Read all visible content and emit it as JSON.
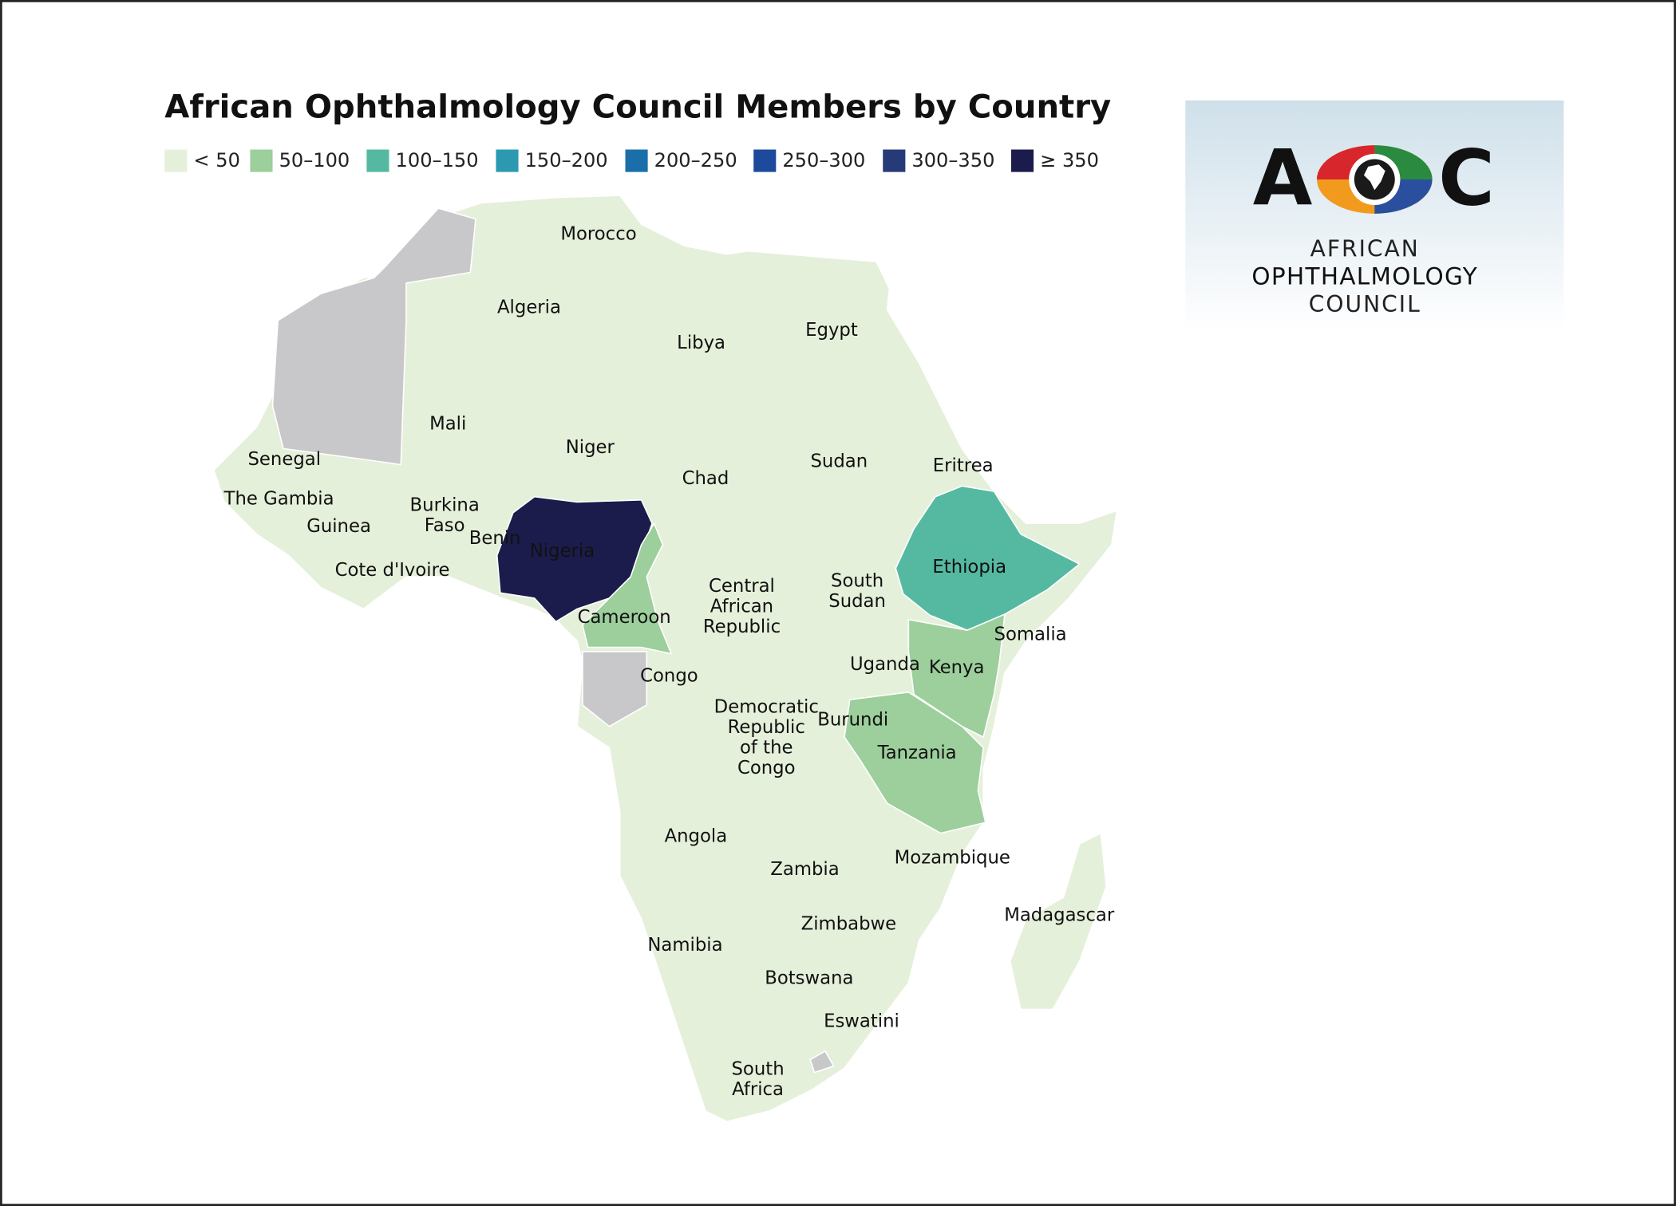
{
  "title": "African Ophthalmology Council Members by Country",
  "legend": [
    {
      "label": "< 50",
      "color": "#e5f0da"
    },
    {
      "label": "50–100",
      "color": "#9ccf9b"
    },
    {
      "label": "100–150",
      "color": "#55b9a2"
    },
    {
      "label": "150–200",
      "color": "#2b9ab1"
    },
    {
      "label": "200–250",
      "color": "#1a6ea9"
    },
    {
      "label": "250–300",
      "color": "#1e4a9c"
    },
    {
      "label": "300–350",
      "color": "#263a77"
    },
    {
      "label": "≥ 350",
      "color": "#1b1c4b"
    }
  ],
  "no_data_color": "#c8c8cb",
  "countries": [
    {
      "label": [
        "Morocco"
      ],
      "color": "#e5f0da"
    },
    {
      "label": [
        "Algeria"
      ],
      "color": "#e5f0da"
    },
    {
      "label": [
        "Libya"
      ],
      "color": "#e5f0da"
    },
    {
      "label": [
        "Egypt"
      ],
      "color": "#e5f0da"
    },
    {
      "label": [
        "Mali"
      ],
      "color": "#e5f0da"
    },
    {
      "label": [
        "Niger"
      ],
      "color": "#e5f0da"
    },
    {
      "label": [
        "Senegal"
      ],
      "color": "#e5f0da"
    },
    {
      "label": [
        "Chad"
      ],
      "color": "#e5f0da"
    },
    {
      "label": [
        "Sudan"
      ],
      "color": "#e5f0da"
    },
    {
      "label": [
        "Eritrea"
      ],
      "color": "#e5f0da"
    },
    {
      "label": [
        "The Gambia"
      ],
      "color": "#e5f0da"
    },
    {
      "label": [
        "Burkina",
        "Faso"
      ],
      "color": "#e5f0da"
    },
    {
      "label": [
        "Guinea"
      ],
      "color": "#e5f0da"
    },
    {
      "label": [
        "Benin"
      ],
      "color": "#e5f0da"
    },
    {
      "label": [
        "Nigeria"
      ],
      "color": "#1b1c4b"
    },
    {
      "label": [
        "Ethiopia"
      ],
      "color": "#55b9a2"
    },
    {
      "label": [
        "Cote d'Ivoire"
      ],
      "color": "#e5f0da"
    },
    {
      "label": [
        "Central",
        "African",
        "Republic"
      ],
      "color": "#e5f0da"
    },
    {
      "label": [
        "South",
        "Sudan"
      ],
      "color": "#e5f0da"
    },
    {
      "label": [
        "Cameroon"
      ],
      "color": "#9ccf9b"
    },
    {
      "label": [
        "Somalia"
      ],
      "color": "#e5f0da"
    },
    {
      "label": [
        "Uganda"
      ],
      "color": "#e5f0da"
    },
    {
      "label": [
        "Kenya"
      ],
      "color": "#9ccf9b"
    },
    {
      "label": [
        "Congo"
      ],
      "color": "#e5f0da"
    },
    {
      "label": [
        "Democratic",
        "Republic",
        "of the",
        "Congo"
      ],
      "color": "#e5f0da"
    },
    {
      "label": [
        "Burundi"
      ],
      "color": "#e5f0da"
    },
    {
      "label": [
        "Tanzania"
      ],
      "color": "#9ccf9b"
    },
    {
      "label": [
        "Angola"
      ],
      "color": "#e5f0da"
    },
    {
      "label": [
        "Mozambique"
      ],
      "color": "#e5f0da"
    },
    {
      "label": [
        "Zambia"
      ],
      "color": "#e5f0da"
    },
    {
      "label": [
        "Zimbabwe"
      ],
      "color": "#e5f0da"
    },
    {
      "label": [
        "Madagascar"
      ],
      "color": "#e5f0da"
    },
    {
      "label": [
        "Namibia"
      ],
      "color": "#e5f0da"
    },
    {
      "label": [
        "Botswana"
      ],
      "color": "#e5f0da"
    },
    {
      "label": [
        "Eswatini"
      ],
      "color": "#e5f0da"
    },
    {
      "label": [
        "South",
        "Africa"
      ],
      "color": "#e5f0da"
    }
  ],
  "logo": {
    "left": "A",
    "right": "C",
    "lines": [
      "AFRICAN",
      "OPHTHALMOLOGY",
      "COUNCIL"
    ]
  }
}
